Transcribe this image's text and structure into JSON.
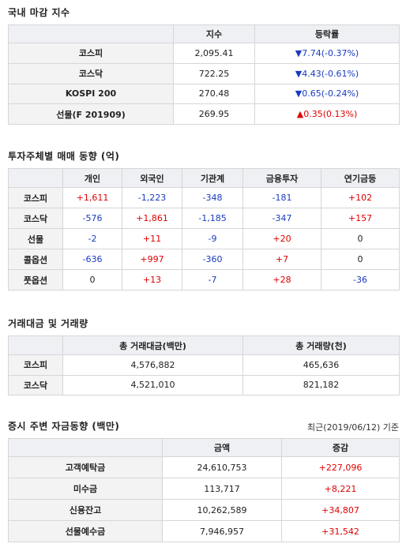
{
  "sections": [
    {
      "title": "국내 마감 지수",
      "columns": [
        "지수",
        "등락률"
      ],
      "rows": [
        {
          "label": "코스피",
          "cells": [
            "2,095.41",
            "▼7.74(-0.37%)"
          ]
        },
        {
          "label": "코스닥",
          "cells": [
            "722.25",
            "▼4.43(-0.61%)"
          ]
        },
        {
          "label": "KOSPI 200",
          "cells": [
            "270.48",
            "▼0.65(-0.24%)"
          ]
        },
        {
          "label": "선물(F 201909)",
          "cells": [
            "269.95",
            "▲0.35(0.13%)"
          ]
        }
      ]
    },
    {
      "title": "투자주체별 매매 동향 (억)",
      "columns": [
        "개인",
        "외국인",
        "기관계",
        "금융투자",
        "연기금등"
      ],
      "rows": [
        {
          "label": "코스피",
          "cells": [
            "+1,611",
            "-1,223",
            "-348",
            "-181",
            "+102"
          ]
        },
        {
          "label": "코스닥",
          "cells": [
            "-576",
            "+1,861",
            "-1,185",
            "-347",
            "+157"
          ]
        },
        {
          "label": "선물",
          "cells": [
            "-2",
            "+11",
            "-9",
            "+20",
            "0"
          ]
        },
        {
          "label": "콜옵션",
          "cells": [
            "-636",
            "+997",
            "-360",
            "+7",
            "0"
          ]
        },
        {
          "label": "풋옵션",
          "cells": [
            "0",
            "+13",
            "-7",
            "+28",
            "-36"
          ]
        }
      ]
    },
    {
      "title": "거래대금 및 거래량",
      "columns": [
        "총 거래대금(백만)",
        "총 거래량(천)"
      ],
      "rows": [
        {
          "label": "코스피",
          "cells": [
            "4,576,882",
            "465,636"
          ]
        },
        {
          "label": "코스닥",
          "cells": [
            "4,521,010",
            "821,182"
          ]
        }
      ]
    },
    {
      "title": "증시 주변 자금동향 (백만)",
      "note": "최근(2019/06/12) 기준",
      "columns": [
        "금액",
        "증감"
      ],
      "rows": [
        {
          "label": "고객예탁금",
          "cells": [
            "24,610,753",
            "+227,096"
          ]
        },
        {
          "label": "미수금",
          "cells": [
            "113,717",
            "+8,221"
          ]
        },
        {
          "label": "신용잔고",
          "cells": [
            "10,262,589",
            "+34,807"
          ]
        },
        {
          "label": "선물예수금",
          "cells": [
            "7,946,957",
            "+31,542"
          ]
        }
      ]
    }
  ]
}
